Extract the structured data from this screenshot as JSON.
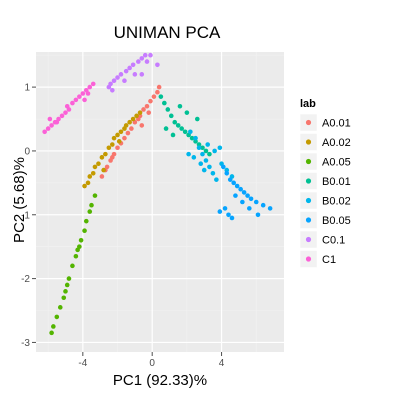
{
  "chart_data": {
    "type": "scatter",
    "title": "UNIMAN PCA",
    "xlabel": "PC1 (92.33)%",
    "ylabel": "PC2 (5.68)%",
    "xlim": [
      -6.7,
      7.6
    ],
    "ylim": [
      -3.15,
      1.55
    ],
    "xticks": [
      -4,
      0,
      4
    ],
    "yticks": [
      1,
      0,
      -1,
      -2,
      -3
    ],
    "grid": true,
    "legend": {
      "title": "lab",
      "position": "right"
    },
    "series": [
      {
        "name": "A0.01",
        "color": "#F8766D",
        "points": [
          [
            -2.9,
            -0.4
          ],
          [
            -2.7,
            -0.3
          ],
          [
            -2.6,
            -0.25
          ],
          [
            -2.4,
            -0.15
          ],
          [
            -2.3,
            -0.1
          ],
          [
            -2.2,
            -0.05
          ],
          [
            -2.0,
            0.05
          ],
          [
            -1.8,
            0.12
          ],
          [
            -1.6,
            0.2
          ],
          [
            -1.4,
            0.28
          ],
          [
            -1.2,
            0.35
          ],
          [
            -1.0,
            0.45
          ],
          [
            -0.8,
            0.5
          ],
          [
            -0.7,
            0.55
          ],
          [
            -0.5,
            0.65
          ],
          [
            -0.3,
            0.7
          ],
          [
            -0.1,
            0.78
          ],
          [
            0.1,
            0.85
          ],
          [
            0.3,
            0.92
          ],
          [
            0.4,
            1.0
          ],
          [
            -0.2,
            0.6
          ],
          [
            -0.6,
            0.4
          ]
        ]
      },
      {
        "name": "A0.02",
        "color": "#C49A00",
        "points": [
          [
            -3.9,
            -0.55
          ],
          [
            -3.7,
            -0.5
          ],
          [
            -3.6,
            -0.4
          ],
          [
            -3.4,
            -0.35
          ],
          [
            -3.3,
            -0.25
          ],
          [
            -3.1,
            -0.2
          ],
          [
            -2.9,
            -0.1
          ],
          [
            -2.7,
            -0.05
          ],
          [
            -2.5,
            0.05
          ],
          [
            -2.3,
            0.1
          ],
          [
            -2.2,
            0.2
          ],
          [
            -2.0,
            0.25
          ],
          [
            -1.8,
            0.3
          ],
          [
            -1.6,
            0.35
          ],
          [
            -1.5,
            0.4
          ],
          [
            -1.3,
            0.45
          ],
          [
            -1.1,
            0.5
          ],
          [
            -0.9,
            0.55
          ],
          [
            -0.7,
            0.6
          ],
          [
            -2.8,
            -0.3
          ],
          [
            -1.9,
            0.15
          ]
        ]
      },
      {
        "name": "A0.05",
        "color": "#53B400",
        "points": [
          [
            -5.8,
            -2.85
          ],
          [
            -5.7,
            -2.75
          ],
          [
            -5.5,
            -2.6
          ],
          [
            -5.3,
            -2.45
          ],
          [
            -5.1,
            -2.3
          ],
          [
            -4.9,
            -2.1
          ],
          [
            -4.8,
            -2.0
          ],
          [
            -4.6,
            -1.8
          ],
          [
            -4.4,
            -1.65
          ],
          [
            -4.3,
            -1.55
          ],
          [
            -4.1,
            -1.4
          ],
          [
            -3.9,
            -1.25
          ],
          [
            -3.8,
            -1.1
          ],
          [
            -3.6,
            -0.95
          ],
          [
            -3.5,
            -0.85
          ],
          [
            -3.3,
            -0.7
          ],
          [
            -5.0,
            -2.2
          ],
          [
            -4.2,
            -1.5
          ]
        ]
      },
      {
        "name": "B0.01",
        "color": "#00C094",
        "points": [
          [
            0.5,
            0.85
          ],
          [
            0.7,
            0.75
          ],
          [
            0.9,
            0.65
          ],
          [
            1.1,
            0.55
          ],
          [
            1.3,
            0.45
          ],
          [
            1.5,
            0.4
          ],
          [
            1.7,
            0.35
          ],
          [
            1.9,
            0.3
          ],
          [
            2.1,
            0.25
          ],
          [
            2.3,
            0.2
          ],
          [
            2.5,
            0.15
          ],
          [
            2.7,
            0.1
          ],
          [
            2.9,
            0.05
          ],
          [
            3.1,
            0.0
          ],
          [
            1.2,
            0.25
          ],
          [
            0.8,
            0.35
          ],
          [
            2.0,
            0.6
          ],
          [
            2.6,
            0.5
          ],
          [
            3.3,
            -0.05
          ],
          [
            1.6,
            0.7
          ]
        ]
      },
      {
        "name": "B0.02",
        "color": "#00B6EB",
        "points": [
          [
            2.2,
            0.3
          ],
          [
            2.5,
            0.2
          ],
          [
            2.7,
            0.05
          ],
          [
            2.9,
            -0.05
          ],
          [
            3.1,
            -0.15
          ],
          [
            3.3,
            -0.25
          ],
          [
            3.5,
            -0.35
          ],
          [
            3.7,
            -0.45
          ],
          [
            2.4,
            -0.1
          ],
          [
            2.8,
            -0.2
          ],
          [
            3.2,
            0.1
          ],
          [
            3.6,
            0.0
          ],
          [
            4.0,
            -0.2
          ],
          [
            4.3,
            -0.3
          ],
          [
            4.6,
            -0.4
          ],
          [
            2.1,
            -0.05
          ],
          [
            3.0,
            -0.3
          ],
          [
            3.9,
            0.05
          ]
        ]
      },
      {
        "name": "B0.05",
        "color": "#06A4FF",
        "points": [
          [
            4.1,
            -0.25
          ],
          [
            4.3,
            -0.35
          ],
          [
            4.5,
            -0.45
          ],
          [
            4.7,
            -0.5
          ],
          [
            4.9,
            -0.55
          ],
          [
            5.1,
            -0.6
          ],
          [
            5.3,
            -0.65
          ],
          [
            5.5,
            -0.7
          ],
          [
            5.7,
            -0.75
          ],
          [
            6.0,
            -0.8
          ],
          [
            6.4,
            -0.85
          ],
          [
            6.8,
            -0.9
          ],
          [
            4.2,
            -0.9
          ],
          [
            4.4,
            -1.0
          ],
          [
            4.6,
            -1.05
          ],
          [
            3.9,
            -0.95
          ],
          [
            4.8,
            -0.7
          ],
          [
            5.2,
            -0.8
          ],
          [
            5.6,
            -0.9
          ],
          [
            6.1,
            -1.0
          ]
        ]
      },
      {
        "name": "C0.1",
        "color": "#C77CFF",
        "points": [
          [
            -2.5,
            1.0
          ],
          [
            -2.4,
            1.05
          ],
          [
            -2.2,
            1.1
          ],
          [
            -2.0,
            1.15
          ],
          [
            -1.8,
            1.2
          ],
          [
            -1.5,
            1.25
          ],
          [
            -1.3,
            1.3
          ],
          [
            -1.1,
            1.35
          ],
          [
            -0.8,
            1.4
          ],
          [
            -0.6,
            1.45
          ],
          [
            -0.4,
            1.5
          ],
          [
            0.3,
            1.35
          ],
          [
            -0.3,
            1.4
          ],
          [
            -1.0,
            1.2
          ],
          [
            -2.3,
            0.95
          ],
          [
            -0.1,
            1.5
          ],
          [
            -0.6,
            1.2
          ],
          [
            -1.6,
            1.1
          ]
        ]
      },
      {
        "name": "C1",
        "color": "#FB61D7",
        "points": [
          [
            -6.2,
            0.3
          ],
          [
            -6.0,
            0.35
          ],
          [
            -5.8,
            0.4
          ],
          [
            -5.6,
            0.45
          ],
          [
            -5.4,
            0.5
          ],
          [
            -5.2,
            0.55
          ],
          [
            -5.0,
            0.6
          ],
          [
            -4.8,
            0.65
          ],
          [
            -4.6,
            0.75
          ],
          [
            -4.4,
            0.8
          ],
          [
            -4.2,
            0.85
          ],
          [
            -4.0,
            0.9
          ],
          [
            -3.8,
            0.95
          ],
          [
            -3.6,
            1.0
          ],
          [
            -3.4,
            1.05
          ],
          [
            -5.9,
            0.5
          ],
          [
            -4.9,
            0.7
          ],
          [
            -3.9,
            0.8
          ],
          [
            -3.7,
            0.9
          ],
          [
            -5.5,
            0.45
          ]
        ]
      }
    ]
  }
}
